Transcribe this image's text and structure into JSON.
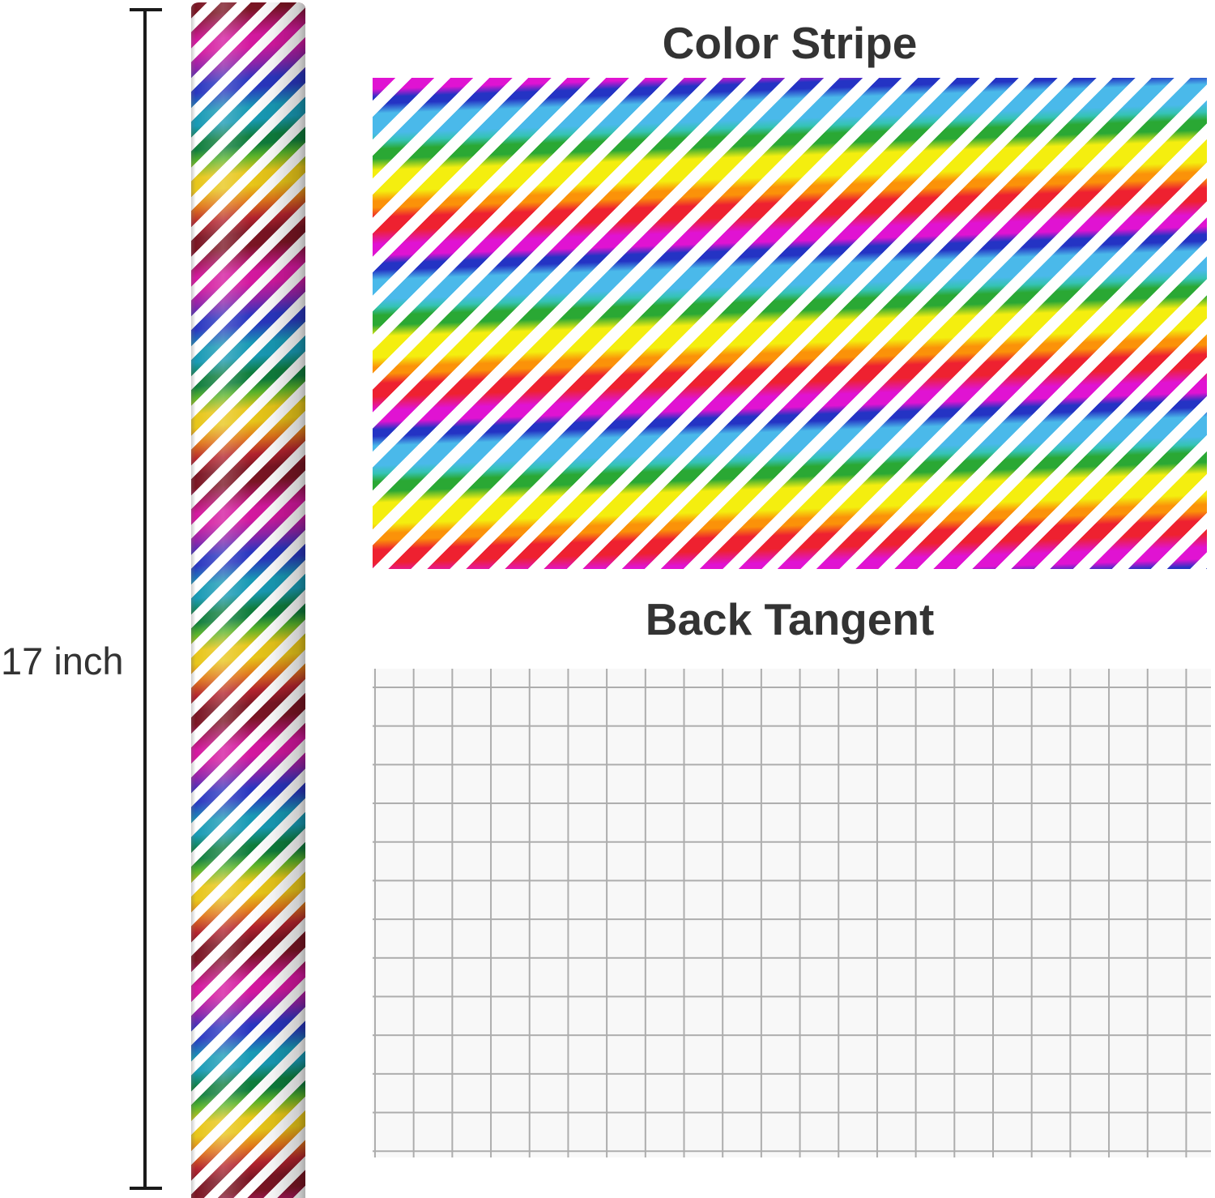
{
  "canvas": {
    "background": "#ffffff"
  },
  "dimension": {
    "label": "17 inch"
  },
  "panels": {
    "front": {
      "title": "Color Stripe"
    },
    "back": {
      "title": "Back Tangent"
    }
  },
  "colors": {
    "text": "#333333",
    "title": "#333333",
    "arrow": "#1a1a1a",
    "stripe-white": "#ffffff",
    "magenta": "#e013d2",
    "blue": "#2433c4",
    "lightblue": "#4ab9ea",
    "aqua": "#35c3b5",
    "green": "#2aa834",
    "yellow": "#f4ee0f",
    "orange": "#fb9209",
    "red": "#ee2130",
    "foil-darkred": "#7a1523",
    "foil-magenta": "#d4189f",
    "foil-purple": "#8e24aa",
    "foil-blue": "#2936c0",
    "foil-teal": "#189ab5",
    "foil-green": "#0f7d3c",
    "foil-lime": "#58b32a",
    "foil-gold": "#e8c619",
    "foil-orange": "#e0761a",
    "foil-red": "#b3232e",
    "grid-line": "#adadad",
    "grid-bg": "#f8f8f8"
  }
}
